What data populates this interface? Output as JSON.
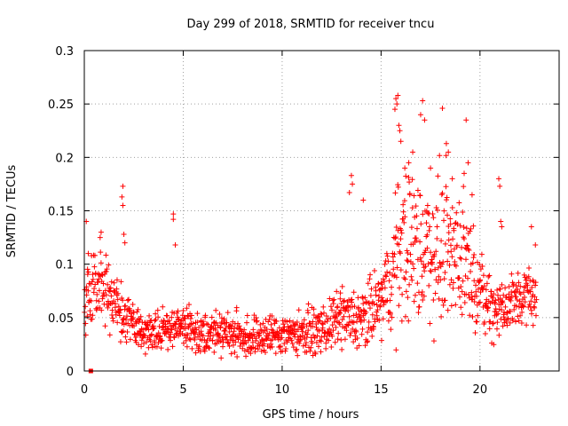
{
  "chart_data": {
    "type": "scatter",
    "title": "Day 299 of 2018, SRMTID for receiver tncu",
    "xlabel": "GPS time / hours",
    "ylabel": "SRMTID / TECUs",
    "xlim": [
      0,
      24
    ],
    "ylim": [
      0,
      0.3
    ],
    "xticks": [
      0,
      5,
      10,
      15,
      20
    ],
    "xtick_labels": [
      "0",
      "5",
      "10",
      "15",
      "20"
    ],
    "yticks": [
      0,
      0.05,
      0.1,
      0.15,
      0.2,
      0.25,
      0.3
    ],
    "ytick_labels": [
      "0",
      "0.05",
      "0.1",
      "0.15",
      "0.2",
      "0.25",
      "0.3"
    ],
    "grid": true,
    "marker": "+",
    "series_color": "#ff0000",
    "series": [
      {
        "name": "SRMTID",
        "outliers": [
          [
            0.1,
            0.14
          ],
          [
            0.2,
            0.11
          ],
          [
            0.85,
            0.13
          ],
          [
            0.8,
            0.125
          ],
          [
            1.95,
            0.173
          ],
          [
            1.9,
            0.163
          ],
          [
            1.95,
            0.155
          ],
          [
            2.0,
            0.128
          ],
          [
            2.05,
            0.12
          ],
          [
            4.5,
            0.147
          ],
          [
            4.5,
            0.142
          ],
          [
            4.6,
            0.118
          ],
          [
            13.5,
            0.183
          ],
          [
            13.55,
            0.175
          ],
          [
            13.4,
            0.167
          ],
          [
            14.1,
            0.16
          ],
          [
            15.75,
            0.255
          ],
          [
            15.85,
            0.258
          ],
          [
            15.8,
            0.25
          ],
          [
            15.7,
            0.245
          ],
          [
            15.9,
            0.23
          ],
          [
            15.95,
            0.225
          ],
          [
            16.0,
            0.215
          ],
          [
            17.1,
            0.253
          ],
          [
            17.0,
            0.24
          ],
          [
            17.2,
            0.235
          ],
          [
            18.1,
            0.246
          ],
          [
            18.3,
            0.213
          ],
          [
            18.4,
            0.205
          ],
          [
            19.3,
            0.235
          ],
          [
            19.4,
            0.195
          ],
          [
            19.2,
            0.185
          ],
          [
            20.95,
            0.18
          ],
          [
            21.0,
            0.173
          ],
          [
            21.05,
            0.14
          ],
          [
            21.1,
            0.135
          ],
          [
            22.6,
            0.135
          ],
          [
            22.8,
            0.118
          ],
          [
            16.4,
            0.195
          ],
          [
            16.6,
            0.205
          ],
          [
            17.5,
            0.19
          ],
          [
            18.6,
            0.18
          ],
          [
            19.6,
            0.165
          ],
          [
            16.2,
            0.19
          ]
        ],
        "trend": [
          [
            0,
            0.07
          ],
          [
            0.5,
            0.085
          ],
          [
            1,
            0.08
          ],
          [
            1.5,
            0.06
          ],
          [
            2,
            0.05
          ],
          [
            2.5,
            0.045
          ],
          [
            3,
            0.035
          ],
          [
            4,
            0.04
          ],
          [
            5,
            0.042
          ],
          [
            6,
            0.035
          ],
          [
            7,
            0.038
          ],
          [
            8,
            0.032
          ],
          [
            9,
            0.033
          ],
          [
            10,
            0.035
          ],
          [
            11,
            0.036
          ],
          [
            12,
            0.038
          ],
          [
            13,
            0.05
          ],
          [
            14,
            0.045
          ],
          [
            15,
            0.065
          ],
          [
            15.5,
            0.085
          ],
          [
            16,
            0.12
          ],
          [
            16.5,
            0.12
          ],
          [
            17,
            0.11
          ],
          [
            17.5,
            0.115
          ],
          [
            18,
            0.115
          ],
          [
            18.5,
            0.115
          ],
          [
            19,
            0.11
          ],
          [
            19.5,
            0.1
          ],
          [
            20,
            0.075
          ],
          [
            20.5,
            0.06
          ],
          [
            21,
            0.06
          ],
          [
            21.5,
            0.06
          ],
          [
            22,
            0.07
          ],
          [
            22.5,
            0.07
          ],
          [
            23,
            0.065
          ]
        ],
        "spread": [
          [
            0,
            0.025
          ],
          [
            2,
            0.02
          ],
          [
            3,
            0.015
          ],
          [
            12,
            0.015
          ],
          [
            13,
            0.02
          ],
          [
            15,
            0.025
          ],
          [
            16,
            0.055
          ],
          [
            19,
            0.05
          ],
          [
            20,
            0.025
          ],
          [
            23,
            0.02
          ]
        ],
        "sample_count": 1400,
        "x_range": [
          0,
          22.85
        ]
      }
    ],
    "special_markers": [
      {
        "x": 0.33,
        "y": 0.0,
        "shape": "square"
      }
    ]
  }
}
